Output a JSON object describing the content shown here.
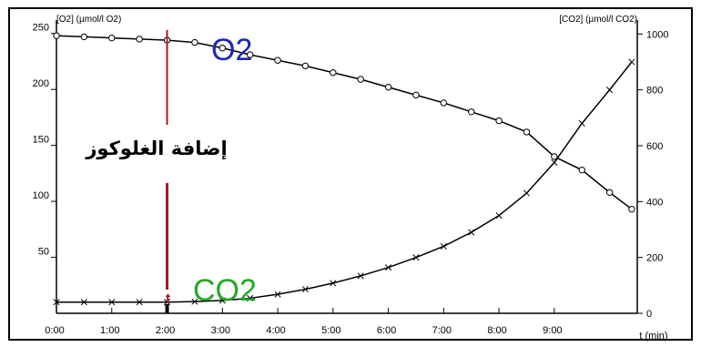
{
  "chart_data": {
    "type": "line",
    "left_axis_label": "[O2] (µmol/l O2)",
    "right_axis_label": "[CO2] (µmol/l CO2)",
    "x_axis_label": "t (min)",
    "xlim": [
      0,
      10.5
    ],
    "ylim_left": [
      0,
      262
    ],
    "ylim_right": [
      0,
      1050
    ],
    "x_ticks": [
      {
        "value": 0,
        "label": "0:00"
      },
      {
        "value": 1,
        "label": "1:00"
      },
      {
        "value": 2,
        "label": "2:00"
      },
      {
        "value": 3,
        "label": "3:00"
      },
      {
        "value": 4,
        "label": "4:00"
      },
      {
        "value": 5,
        "label": "5:00"
      },
      {
        "value": 6,
        "label": "6:00"
      },
      {
        "value": 7,
        "label": "7:00"
      },
      {
        "value": 8,
        "label": "8:00"
      },
      {
        "value": 9,
        "label": "9:00"
      }
    ],
    "y_left_ticks": [
      {
        "value": 50,
        "label": "50"
      },
      {
        "value": 100,
        "label": "100"
      },
      {
        "value": 150,
        "label": "150"
      },
      {
        "value": 200,
        "label": "200"
      },
      {
        "value": 250,
        "label": "250"
      }
    ],
    "y_right_ticks": [
      {
        "value": 0,
        "label": "0"
      },
      {
        "value": 200,
        "label": "200"
      },
      {
        "value": 400,
        "label": "400"
      },
      {
        "value": 600,
        "label": "600"
      },
      {
        "value": 800,
        "label": "800"
      },
      {
        "value": 1000,
        "label": "1000"
      }
    ],
    "series": [
      {
        "name": "O2",
        "axis": "left",
        "marker": "circle",
        "color": "#1a28b4",
        "x": [
          0,
          0.5,
          1,
          1.5,
          2,
          2.5,
          3,
          3.5,
          4,
          4.5,
          5,
          5.5,
          6,
          6.5,
          7,
          7.5,
          8,
          8.5,
          9,
          9.5,
          10,
          10.4
        ],
        "y": [
          248,
          247,
          246,
          245,
          244,
          242,
          237,
          231,
          226,
          221,
          215,
          209,
          202,
          195,
          188,
          180,
          172,
          162,
          140,
          128,
          108,
          93
        ]
      },
      {
        "name": "CO2",
        "axis": "right",
        "marker": "cross",
        "color": "#22aa22",
        "x": [
          0,
          0.5,
          1,
          1.5,
          2,
          2.5,
          3,
          3.5,
          4,
          4.5,
          5,
          5.5,
          6,
          6.5,
          7,
          7.5,
          8,
          8.5,
          9,
          9.5,
          10,
          10.4
        ],
        "y": [
          40,
          40,
          40,
          40,
          40,
          42,
          46,
          54,
          68,
          86,
          108,
          134,
          164,
          200,
          240,
          290,
          350,
          430,
          540,
          680,
          800,
          900
        ]
      }
    ],
    "event": {
      "x": 2,
      "label": "t",
      "annotation": "إضافة الغلوكوز",
      "color": "#a01c1c"
    }
  }
}
